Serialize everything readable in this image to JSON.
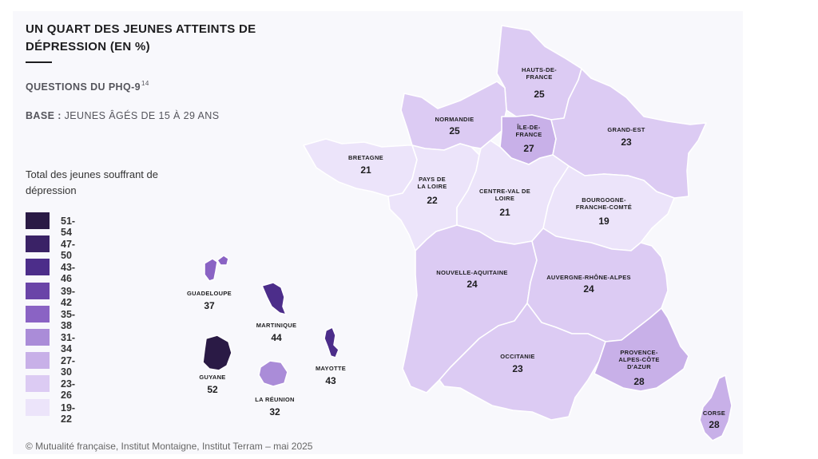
{
  "title": "UN QUART DES JEUNES ATTEINTS DE DÉPRESSION (EN %)",
  "subtitle": "QUESTIONS DU PHQ-9",
  "subtitle_note": "14",
  "base_label": "BASE :",
  "base_text": "JEUNES ÂGÉS DE 15 À 29 ANS",
  "legend": {
    "title": "Total des jeunes souffrant de dépression",
    "items": [
      {
        "label": "51-54",
        "color": "#2a1a45"
      },
      {
        "label": "47-50",
        "color": "#3a2266"
      },
      {
        "label": "43-46",
        "color": "#4c2d8a"
      },
      {
        "label": "39-42",
        "color": "#6a44a8"
      },
      {
        "label": "35-38",
        "color": "#8a63c4"
      },
      {
        "label": "31-34",
        "color": "#aa8cd8"
      },
      {
        "label": "27-30",
        "color": "#c8b0e8"
      },
      {
        "label": "23-26",
        "color": "#dccbf3"
      },
      {
        "label": "19-22",
        "color": "#ece4fa"
      }
    ]
  },
  "regions": {
    "hdf": {
      "name": "HAUTS-DE-FRANCE",
      "value": "25",
      "color": "#dccbf3"
    },
    "normandie": {
      "name": "NORMANDIE",
      "value": "25",
      "color": "#dccbf3"
    },
    "idf": {
      "name": "ÎLE-DE-FRANCE",
      "value": "27",
      "color": "#c8b0e8"
    },
    "grandest": {
      "name": "GRAND-EST",
      "value": "23",
      "color": "#dccbf3"
    },
    "bretagne": {
      "name": "BRETAGNE",
      "value": "21",
      "color": "#ece4fa"
    },
    "pdl": {
      "name": "PAYS DE LA LOIRE",
      "value": "22",
      "color": "#ece4fa"
    },
    "cvl": {
      "name": "CENTRE-VAL DE LOIRE",
      "value": "21",
      "color": "#ece4fa"
    },
    "bfc": {
      "name": "BOURGOGNE-FRANCHE-COMTÉ",
      "value": "19",
      "color": "#ece4fa"
    },
    "na": {
      "name": "NOUVELLE-AQUITAINE",
      "value": "24",
      "color": "#dccbf3"
    },
    "ara": {
      "name": "AUVERGNE-RHÔNE-ALPES",
      "value": "24",
      "color": "#dccbf3"
    },
    "occitanie": {
      "name": "OCCITANIE",
      "value": "23",
      "color": "#dccbf3"
    },
    "paca": {
      "name": "PROVENCE-ALPES-CÔTE D'AZUR",
      "value": "28",
      "color": "#c8b0e8"
    },
    "corse": {
      "name": "CORSE",
      "value": "28",
      "color": "#c8b0e8"
    },
    "guadeloupe": {
      "name": "GUADELOUPE",
      "value": "37",
      "color": "#8a63c4"
    },
    "martinique": {
      "name": "MARTINIQUE",
      "value": "44",
      "color": "#4c2d8a"
    },
    "guyane": {
      "name": "GUYANE",
      "value": "52",
      "color": "#2a1a45"
    },
    "mayotte": {
      "name": "MAYOTTE",
      "value": "43",
      "color": "#4c2d8a"
    },
    "reunion": {
      "name": "LA RÉUNION",
      "value": "32",
      "color": "#aa8cd8"
    }
  },
  "footer": "© Mutualité française, Institut Montaigne, Institut Terram – mai 2025"
}
